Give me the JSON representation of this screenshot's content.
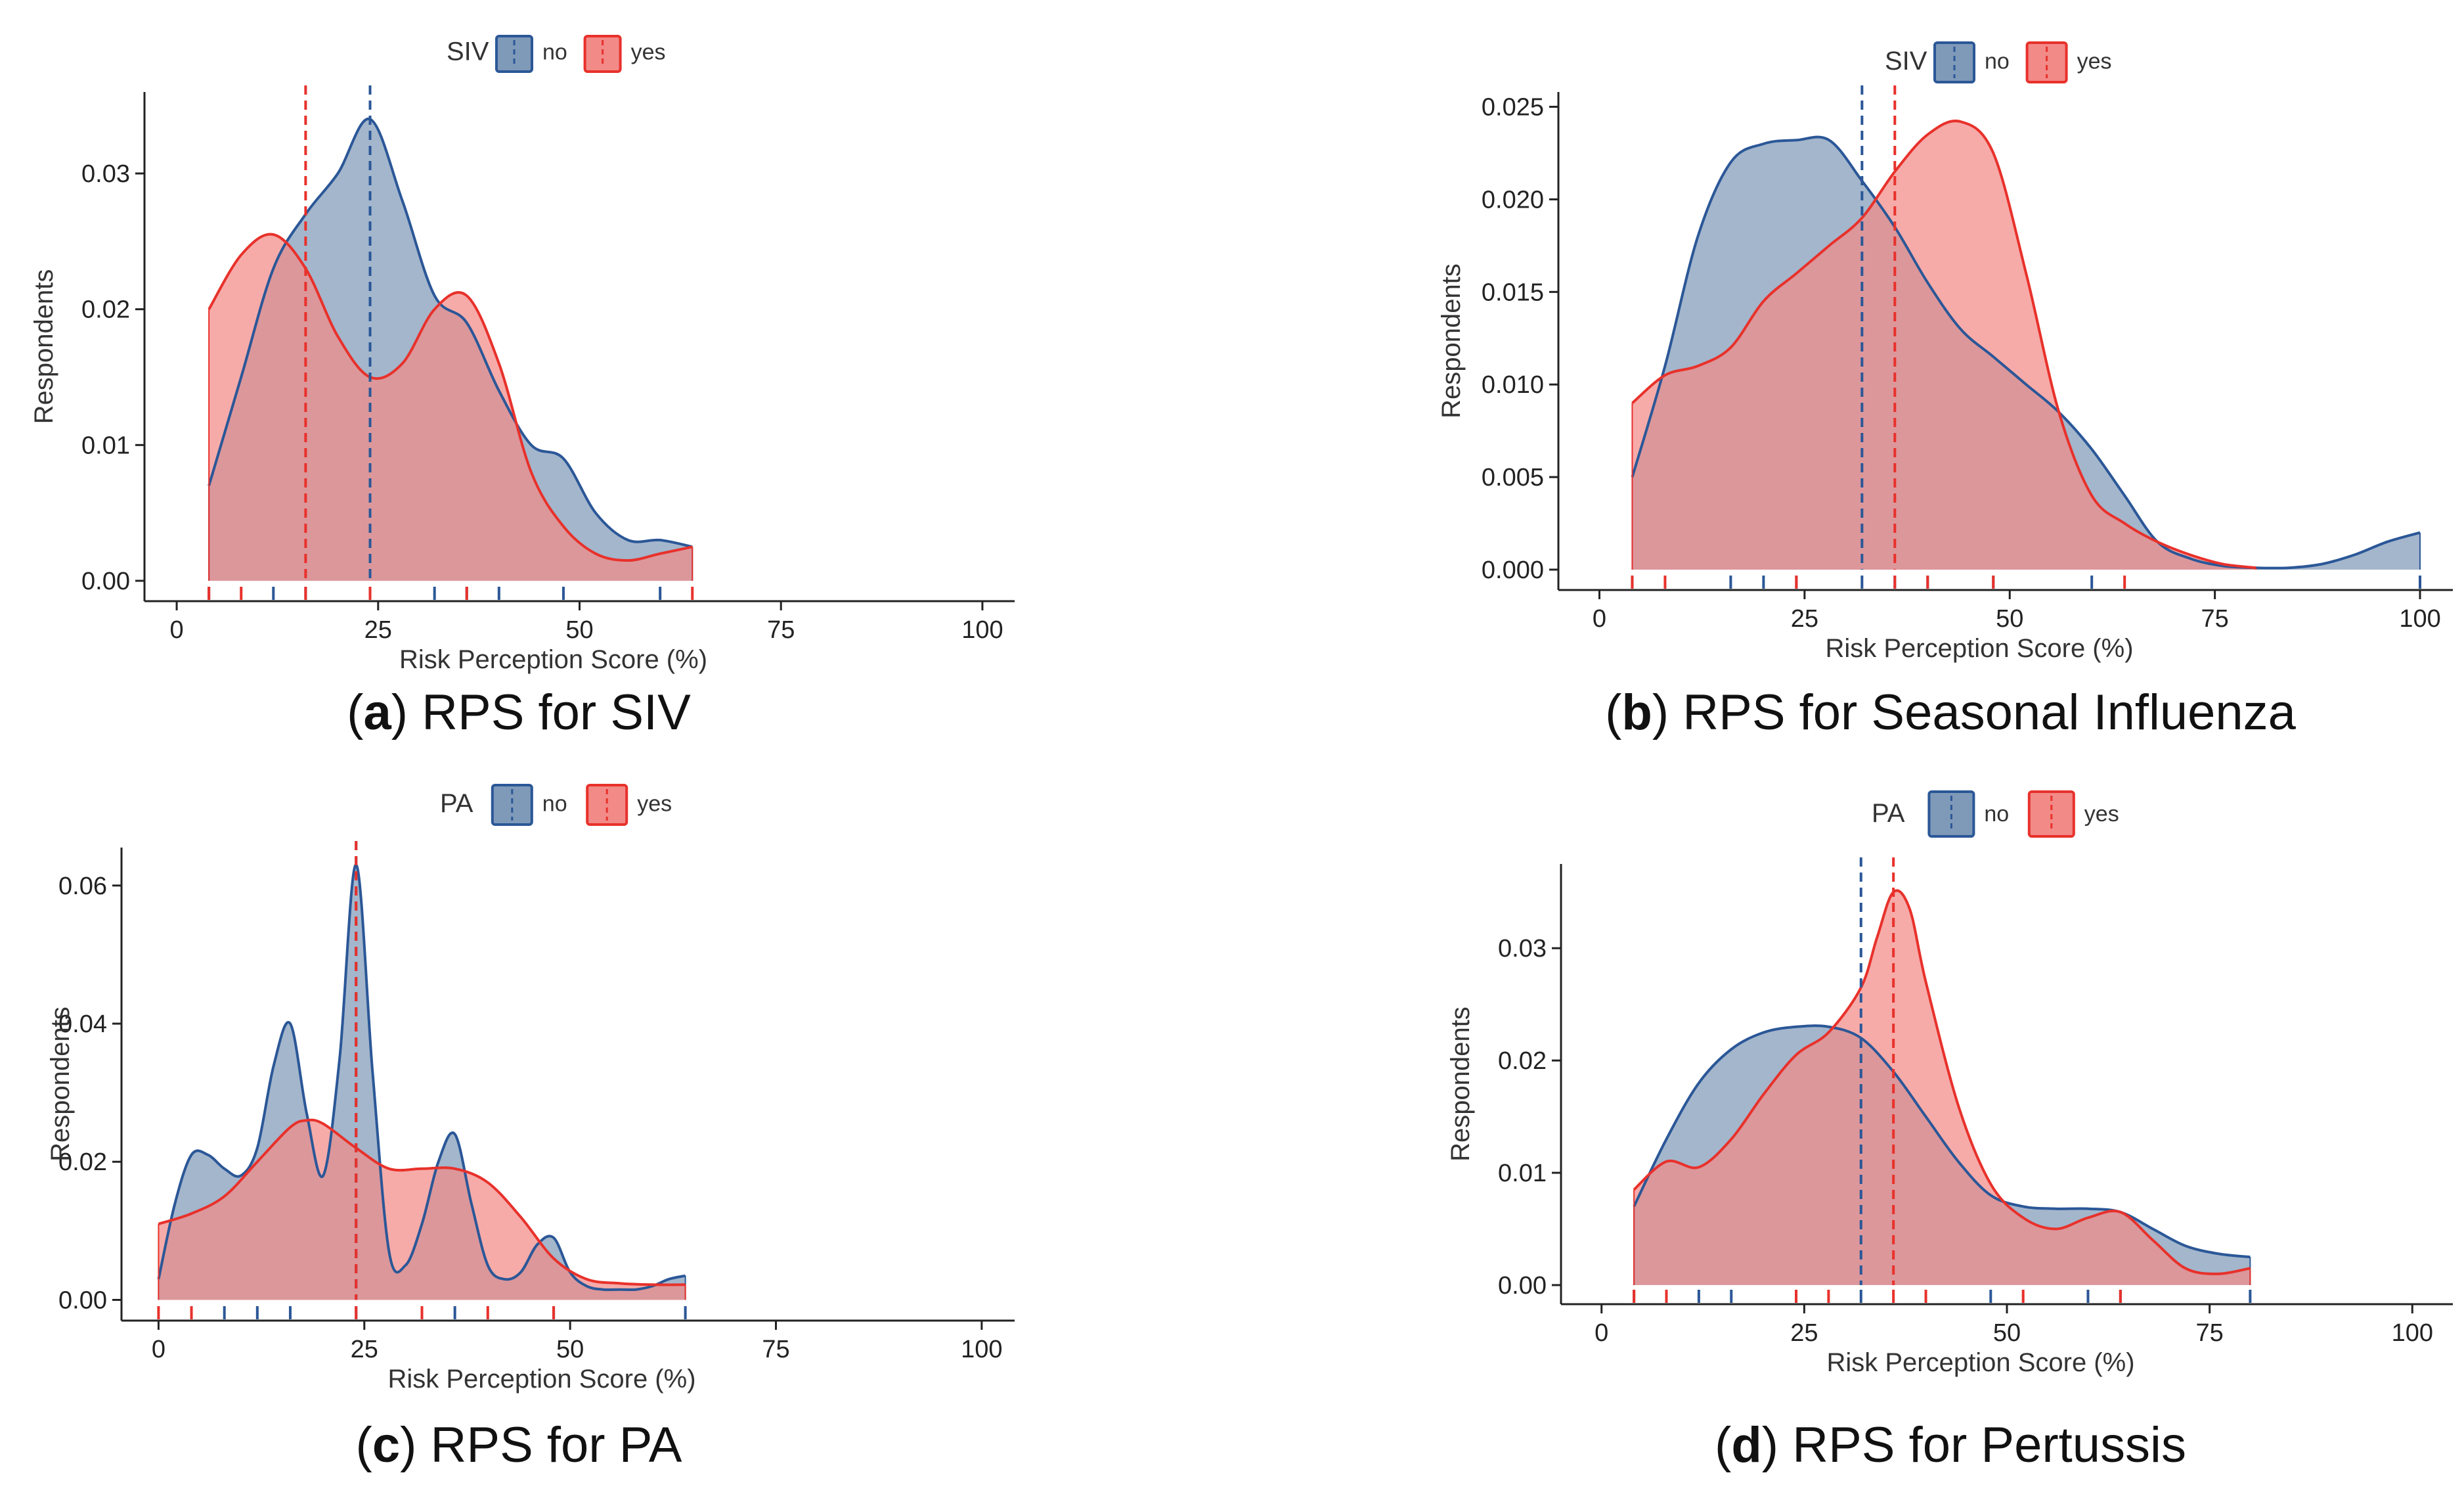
{
  "figure": {
    "colors": {
      "no": "#2b5797",
      "yes": "#e8312b",
      "no_fill": "#7f9ab8",
      "yes_fill": "#f28a88"
    }
  },
  "chart_data": [
    {
      "id": "a",
      "type": "area",
      "caption_letter": "a",
      "caption_text": ") RPS for SIV",
      "legend_title": "SIV",
      "xlabel": "Risk Perception Score (%)",
      "ylabel": "Respondents",
      "xlim": [
        -4,
        104
      ],
      "ylim": [
        -0.0015,
        0.036
      ],
      "xticks": [
        0,
        25,
        50,
        75,
        100
      ],
      "xtick_labels": [
        "0",
        "25",
        "50",
        "75",
        "100"
      ],
      "yticks": [
        0,
        0.01,
        0.02,
        0.03
      ],
      "ytick_labels": [
        "0.00",
        "0.01",
        "0.02",
        "0.03"
      ],
      "series": [
        {
          "name": "no",
          "mean": 24,
          "x": [
            4,
            8,
            12,
            16,
            20,
            24,
            28,
            32,
            36,
            40,
            44,
            48,
            52,
            56,
            60,
            64
          ],
          "y": [
            0.007,
            0.015,
            0.023,
            0.027,
            0.03,
            0.034,
            0.028,
            0.021,
            0.019,
            0.014,
            0.01,
            0.009,
            0.005,
            0.003,
            0.003,
            0.0025
          ],
          "rug": [
            4,
            12,
            16,
            24,
            32,
            36,
            40,
            48,
            60
          ]
        },
        {
          "name": "yes",
          "mean": 16,
          "x": [
            4,
            8,
            12,
            16,
            20,
            24,
            28,
            32,
            36,
            40,
            44,
            48,
            52,
            56,
            60,
            64
          ],
          "y": [
            0.02,
            0.024,
            0.0255,
            0.023,
            0.018,
            0.015,
            0.016,
            0.02,
            0.021,
            0.016,
            0.008,
            0.004,
            0.002,
            0.0015,
            0.002,
            0.0025
          ],
          "rug": [
            4,
            8,
            16,
            24,
            36,
            64
          ]
        }
      ]
    },
    {
      "id": "b",
      "type": "area",
      "caption_letter": "b",
      "caption_text": ") RPS for Seasonal Influenza",
      "legend_title": "SIV",
      "xlabel": "Risk Perception Score (%)",
      "ylabel": "Respondents",
      "xlim": [
        -5,
        104
      ],
      "ylim": [
        -0.0011,
        0.0258
      ],
      "xticks": [
        0,
        25,
        50,
        75,
        100
      ],
      "xtick_labels": [
        "0",
        "25",
        "50",
        "75",
        "100"
      ],
      "yticks": [
        0,
        0.005,
        0.01,
        0.015,
        0.02,
        0.025
      ],
      "ytick_labels": [
        "0.000",
        "0.005",
        "0.010",
        "0.015",
        "0.020",
        "0.025"
      ],
      "series": [
        {
          "name": "no",
          "mean": 32,
          "x": [
            4,
            8,
            12,
            16,
            20,
            24,
            28,
            32,
            36,
            40,
            44,
            48,
            52,
            56,
            60,
            64,
            68,
            72,
            76,
            80,
            84,
            88,
            92,
            96,
            100
          ],
          "y": [
            0.005,
            0.011,
            0.018,
            0.022,
            0.023,
            0.0232,
            0.0232,
            0.021,
            0.0185,
            0.0155,
            0.013,
            0.0115,
            0.01,
            0.0085,
            0.0065,
            0.004,
            0.0015,
            0.0006,
            0.0002,
            0.0001,
            0.0001,
            0.0003,
            0.0008,
            0.0015,
            0.002
          ],
          "rug": [
            4,
            16,
            20,
            24,
            32,
            36,
            40,
            48,
            60,
            100
          ]
        },
        {
          "name": "yes",
          "mean": 36,
          "x": [
            4,
            8,
            12,
            16,
            20,
            24,
            28,
            32,
            36,
            40,
            44,
            48,
            52,
            56,
            60,
            64,
            68,
            72,
            76,
            80
          ],
          "y": [
            0.009,
            0.0105,
            0.011,
            0.012,
            0.0145,
            0.016,
            0.0175,
            0.019,
            0.0215,
            0.0235,
            0.0242,
            0.0225,
            0.016,
            0.0085,
            0.004,
            0.0025,
            0.0015,
            0.0008,
            0.0003,
            0.0001
          ],
          "rug": [
            4,
            8,
            24,
            36,
            40,
            48,
            64
          ]
        }
      ]
    },
    {
      "id": "c",
      "type": "area",
      "caption_letter": "c",
      "caption_text": ") RPS for PA",
      "legend_title": "PA",
      "xlabel": "Risk Perception Score (%)",
      "ylabel": "Respondents",
      "xlim": [
        -4.5,
        104
      ],
      "ylim": [
        -0.003,
        0.0655
      ],
      "xticks": [
        0,
        25,
        50,
        75,
        100
      ],
      "xtick_labels": [
        "0",
        "25",
        "50",
        "75",
        "100"
      ],
      "yticks": [
        0,
        0.02,
        0.04,
        0.06
      ],
      "ytick_labels": [
        "0.00",
        "0.02",
        "0.04",
        "0.06"
      ],
      "series": [
        {
          "name": "no",
          "mean": 24,
          "x": [
            0,
            2,
            4,
            6,
            8,
            10,
            12,
            14,
            16,
            18,
            20,
            22,
            24,
            26,
            28,
            30,
            32,
            34,
            36,
            38,
            40,
            42,
            44,
            46,
            48,
            50,
            52,
            54,
            56,
            58,
            60,
            62,
            64
          ],
          "y": [
            0.003,
            0.014,
            0.021,
            0.021,
            0.019,
            0.018,
            0.022,
            0.034,
            0.04,
            0.027,
            0.018,
            0.035,
            0.063,
            0.033,
            0.007,
            0.005,
            0.011,
            0.02,
            0.024,
            0.014,
            0.005,
            0.003,
            0.004,
            0.008,
            0.009,
            0.004,
            0.002,
            0.0015,
            0.0015,
            0.0015,
            0.002,
            0.003,
            0.0035
          ],
          "rug": [
            8,
            12,
            16,
            24,
            36,
            48,
            64
          ]
        },
        {
          "name": "yes",
          "mean": 24,
          "x": [
            0,
            4,
            8,
            12,
            16,
            18,
            20,
            24,
            28,
            32,
            36,
            40,
            44,
            48,
            52,
            56,
            60,
            64
          ],
          "y": [
            0.011,
            0.0125,
            0.015,
            0.02,
            0.025,
            0.026,
            0.0255,
            0.022,
            0.019,
            0.019,
            0.019,
            0.017,
            0.012,
            0.006,
            0.003,
            0.0024,
            0.0022,
            0.0022
          ],
          "rug": [
            0,
            4,
            24,
            32,
            40,
            48
          ]
        }
      ]
    },
    {
      "id": "d",
      "type": "area",
      "caption_letter": "d",
      "caption_text": ") RPS for Pertussis",
      "legend_title": "PA",
      "xlabel": "Risk Perception Score (%)",
      "ylabel": "Respondents",
      "xlim": [
        -5,
        105
      ],
      "ylim": [
        -0.0017,
        0.0375
      ],
      "xticks": [
        0,
        25,
        50,
        75,
        100
      ],
      "xtick_labels": [
        "0",
        "25",
        "50",
        "75",
        "100"
      ],
      "yticks": [
        0,
        0.01,
        0.02,
        0.03
      ],
      "ytick_labels": [
        "0.00",
        "0.01",
        "0.02",
        "0.03"
      ],
      "series": [
        {
          "name": "no",
          "mean": 32,
          "x": [
            4,
            8,
            12,
            16,
            20,
            24,
            28,
            32,
            36,
            40,
            44,
            48,
            52,
            56,
            60,
            64,
            68,
            72,
            76,
            80
          ],
          "y": [
            0.007,
            0.013,
            0.018,
            0.021,
            0.0225,
            0.023,
            0.023,
            0.022,
            0.019,
            0.015,
            0.011,
            0.008,
            0.007,
            0.0068,
            0.0068,
            0.0065,
            0.005,
            0.0035,
            0.0028,
            0.0025
          ],
          "rug": [
            4,
            12,
            16,
            24,
            32,
            48,
            60,
            64,
            80
          ]
        },
        {
          "name": "yes",
          "mean": 36,
          "x": [
            4,
            8,
            12,
            16,
            20,
            24,
            28,
            32,
            34,
            36,
            38,
            40,
            44,
            48,
            52,
            56,
            60,
            64,
            68,
            72,
            76,
            80
          ],
          "y": [
            0.0085,
            0.011,
            0.0105,
            0.013,
            0.017,
            0.0205,
            0.0225,
            0.0265,
            0.031,
            0.035,
            0.0335,
            0.027,
            0.016,
            0.009,
            0.006,
            0.005,
            0.006,
            0.0065,
            0.004,
            0.0015,
            0.001,
            0.0015
          ],
          "rug": [
            4,
            8,
            24,
            28,
            36,
            40,
            52,
            64
          ]
        }
      ]
    }
  ]
}
